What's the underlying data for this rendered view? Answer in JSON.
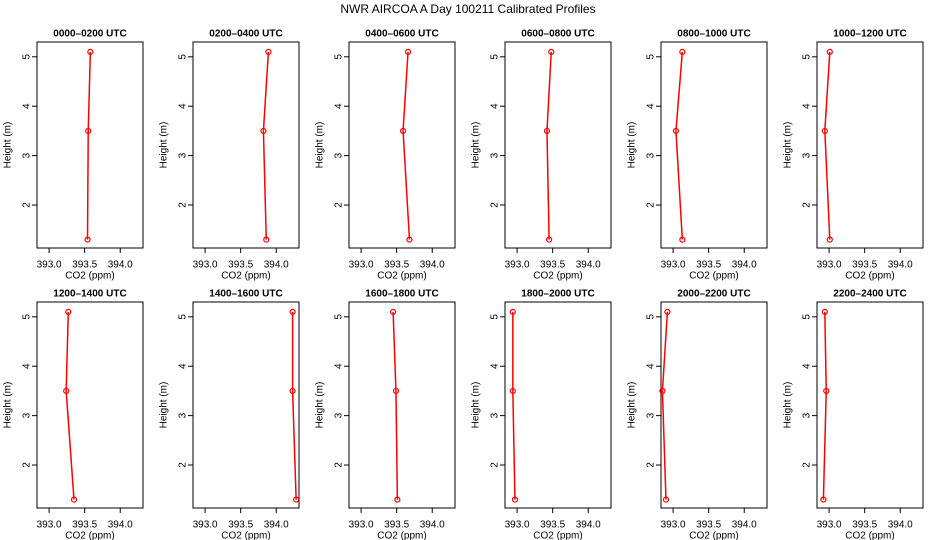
{
  "title": "NWR AIRCOA A  Day 100211  Calibrated Profiles",
  "chart_data": [
    {
      "type": "line",
      "title": "0000–0200 UTC",
      "xlabel": "CO2 (ppm)",
      "ylabel": "Height (m)",
      "color": "#ff0000",
      "x": [
        393.54,
        393.55,
        393.58
      ],
      "values": [
        1.3,
        3.5,
        5.1
      ],
      "xlim": [
        392.83,
        394.32
      ],
      "ylim": [
        1.13,
        5.3
      ],
      "xticks": [
        {
          "value": 393,
          "label": "393.0"
        },
        393.5,
        {
          "value": 394,
          "label": "394.0"
        }
      ],
      "yticks": [
        2,
        3,
        4,
        5
      ]
    },
    {
      "type": "line",
      "title": "0200–0400 UTC",
      "xlabel": "CO2 (ppm)",
      "ylabel": "Height (m)",
      "color": "#ff0000",
      "x": [
        393.86,
        393.82,
        393.89
      ],
      "values": [
        1.3,
        3.5,
        5.1
      ],
      "xlim": [
        392.83,
        394.32
      ],
      "ylim": [
        1.13,
        5.3
      ],
      "xticks": [
        {
          "value": 393,
          "label": "393.0"
        },
        393.5,
        {
          "value": 394,
          "label": "394.0"
        }
      ],
      "yticks": [
        2,
        3,
        4,
        5
      ]
    },
    {
      "type": "line",
      "title": "0400–0600 UTC",
      "xlabel": "CO2 (ppm)",
      "ylabel": "Height (m)",
      "color": "#ff0000",
      "x": [
        393.68,
        393.59,
        393.66
      ],
      "values": [
        1.3,
        3.5,
        5.1
      ],
      "xlim": [
        392.83,
        394.32
      ],
      "ylim": [
        1.13,
        5.3
      ],
      "xticks": [
        {
          "value": 393,
          "label": "393.0"
        },
        393.5,
        {
          "value": 394,
          "label": "394.0"
        }
      ],
      "yticks": [
        2,
        3,
        4,
        5
      ]
    },
    {
      "type": "line",
      "title": "0600–0800 UTC",
      "xlabel": "CO2 (ppm)",
      "ylabel": "Height (m)",
      "color": "#ff0000",
      "x": [
        393.45,
        393.42,
        393.48
      ],
      "values": [
        1.3,
        3.5,
        5.1
      ],
      "xlim": [
        392.83,
        394.32
      ],
      "ylim": [
        1.13,
        5.3
      ],
      "xticks": [
        {
          "value": 393,
          "label": "393.0"
        },
        393.5,
        {
          "value": 394,
          "label": "394.0"
        }
      ],
      "yticks": [
        2,
        3,
        4,
        5
      ]
    },
    {
      "type": "line",
      "title": "0800–1000 UTC",
      "xlabel": "CO2 (ppm)",
      "ylabel": "Height (m)",
      "color": "#ff0000",
      "x": [
        393.13,
        393.04,
        393.13
      ],
      "values": [
        1.3,
        3.5,
        5.1
      ],
      "xlim": [
        392.83,
        394.32
      ],
      "ylim": [
        1.13,
        5.3
      ],
      "xticks": [
        {
          "value": 393,
          "label": "393.0"
        },
        393.5,
        {
          "value": 394,
          "label": "394.0"
        }
      ],
      "yticks": [
        2,
        3,
        4,
        5
      ]
    },
    {
      "type": "line",
      "title": "1000–1200 UTC",
      "xlabel": "CO2 (ppm)",
      "ylabel": "Height (m)",
      "color": "#ff0000",
      "x": [
        393.01,
        392.94,
        393.01
      ],
      "values": [
        1.3,
        3.5,
        5.1
      ],
      "xlim": [
        392.83,
        394.32
      ],
      "ylim": [
        1.13,
        5.3
      ],
      "xticks": [
        {
          "value": 393,
          "label": "393.0"
        },
        393.5,
        {
          "value": 394,
          "label": "394.0"
        }
      ],
      "yticks": [
        2,
        3,
        4,
        5
      ]
    },
    {
      "type": "line",
      "title": "1200–1400 UTC",
      "xlabel": "CO2 (ppm)",
      "ylabel": "Height (m)",
      "color": "#ff0000",
      "x": [
        393.35,
        393.24,
        393.27
      ],
      "values": [
        1.3,
        3.5,
        5.1
      ],
      "xlim": [
        392.83,
        394.32
      ],
      "ylim": [
        1.13,
        5.3
      ],
      "xticks": [
        {
          "value": 393,
          "label": "393.0"
        },
        393.5,
        {
          "value": 394,
          "label": "394.0"
        }
      ],
      "yticks": [
        2,
        3,
        4,
        5
      ]
    },
    {
      "type": "line",
      "title": "1400–1600 UTC",
      "xlabel": "CO2 (ppm)",
      "ylabel": "Height (m)",
      "color": "#ff0000",
      "x": [
        394.28,
        394.23,
        394.23
      ],
      "values": [
        1.3,
        3.5,
        5.1
      ],
      "xlim": [
        392.83,
        394.32
      ],
      "ylim": [
        1.13,
        5.3
      ],
      "xticks": [
        {
          "value": 393,
          "label": "393.0"
        },
        393.5,
        {
          "value": 394,
          "label": "394.0"
        }
      ],
      "yticks": [
        2,
        3,
        4,
        5
      ]
    },
    {
      "type": "line",
      "title": "1600–1800 UTC",
      "xlabel": "CO2 (ppm)",
      "ylabel": "Height (m)",
      "color": "#ff0000",
      "x": [
        393.51,
        393.49,
        393.45
      ],
      "values": [
        1.3,
        3.5,
        5.1
      ],
      "xlim": [
        392.83,
        394.32
      ],
      "ylim": [
        1.13,
        5.3
      ],
      "xticks": [
        {
          "value": 393,
          "label": "393.0"
        },
        393.5,
        {
          "value": 394,
          "label": "394.0"
        }
      ],
      "yticks": [
        2,
        3,
        4,
        5
      ]
    },
    {
      "type": "line",
      "title": "1800–2000 UTC",
      "xlabel": "CO2 (ppm)",
      "ylabel": "Height (m)",
      "color": "#ff0000",
      "x": [
        392.97,
        392.94,
        392.94
      ],
      "values": [
        1.3,
        3.5,
        5.1
      ],
      "xlim": [
        392.83,
        394.32
      ],
      "ylim": [
        1.13,
        5.3
      ],
      "xticks": [
        {
          "value": 393,
          "label": "393.0"
        },
        393.5,
        {
          "value": 394,
          "label": "394.0"
        }
      ],
      "yticks": [
        2,
        3,
        4,
        5
      ]
    },
    {
      "type": "line",
      "title": "2000–2200 UTC",
      "xlabel": "CO2 (ppm)",
      "ylabel": "Height (m)",
      "color": "#ff0000",
      "x": [
        392.9,
        392.85,
        392.92
      ],
      "values": [
        1.3,
        3.5,
        5.1
      ],
      "xlim": [
        392.83,
        394.32
      ],
      "ylim": [
        1.13,
        5.3
      ],
      "xticks": [
        {
          "value": 393,
          "label": "393.0"
        },
        393.5,
        {
          "value": 394,
          "label": "394.0"
        }
      ],
      "yticks": [
        2,
        3,
        4,
        5
      ]
    },
    {
      "type": "line",
      "title": "2200–2400 UTC",
      "xlabel": "CO2 (ppm)",
      "ylabel": "Height (m)",
      "color": "#ff0000",
      "x": [
        392.92,
        392.96,
        392.94
      ],
      "values": [
        1.3,
        3.5,
        5.1
      ],
      "xlim": [
        392.83,
        394.32
      ],
      "ylim": [
        1.13,
        5.3
      ],
      "xticks": [
        {
          "value": 393,
          "label": "393.0"
        },
        393.5,
        {
          "value": 394,
          "label": "394.0"
        }
      ],
      "yticks": [
        2,
        3,
        4,
        5
      ]
    }
  ]
}
